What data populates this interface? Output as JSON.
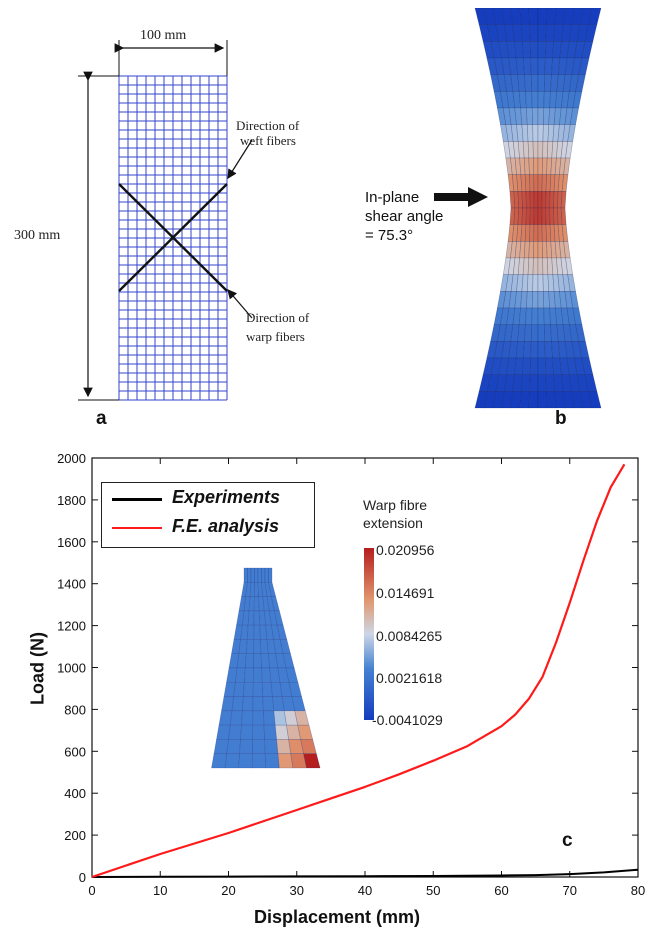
{
  "panel_a": {
    "letter": "a",
    "width_dim": "100 mm",
    "height_dim": "300 mm",
    "weft_label": [
      "Direction of",
      "weft fibers"
    ],
    "warp_label": [
      "Direction of",
      "warp fibers"
    ],
    "grid_cols": 12,
    "grid_rows": 36,
    "grid_color": "#3344cc"
  },
  "panel_b": {
    "letter": "b",
    "annotation": [
      "In-plane",
      "shear angle",
      "= 75.3°"
    ],
    "rows": 24,
    "cols": 14
  },
  "panel_c": {
    "letter": "c",
    "legend": {
      "experiments": "Experiments",
      "fe_analysis": "F.E. analysis"
    },
    "colorbar": {
      "title": [
        "Warp fibre",
        "extension"
      ],
      "ticks": [
        "0.020956",
        "0.014691",
        "0.0084265",
        "0.0021618",
        "-0.0041029"
      ]
    },
    "chart_data": {
      "type": "line",
      "xlabel": "Displacement (mm)",
      "ylabel": "Load (N)",
      "xlim": [
        0,
        80
      ],
      "ylim": [
        0,
        2000
      ],
      "x_ticks": [
        0,
        10,
        20,
        30,
        40,
        50,
        60,
        70,
        80
      ],
      "y_ticks": [
        0,
        200,
        400,
        600,
        800,
        1000,
        1200,
        1400,
        1600,
        1800,
        2000
      ],
      "grid": false,
      "legend_position": "top-left",
      "series": [
        {
          "name": "Experiments",
          "color": "#000000",
          "x": [
            0,
            10,
            20,
            30,
            40,
            50,
            60,
            65,
            70,
            75,
            80
          ],
          "y": [
            0,
            1,
            2,
            3,
            4,
            5,
            7,
            9,
            14,
            22,
            35
          ]
        },
        {
          "name": "F.E. analysis",
          "color": "#ff1a1a",
          "x": [
            0,
            5,
            10,
            15,
            20,
            25,
            30,
            35,
            40,
            45,
            50,
            55,
            60,
            62,
            64,
            66,
            68,
            70,
            72,
            74,
            76,
            78
          ],
          "y": [
            0,
            55,
            110,
            160,
            210,
            265,
            320,
            375,
            430,
            490,
            555,
            625,
            720,
            775,
            850,
            955,
            1120,
            1310,
            1510,
            1700,
            1860,
            1970
          ]
        }
      ]
    }
  }
}
